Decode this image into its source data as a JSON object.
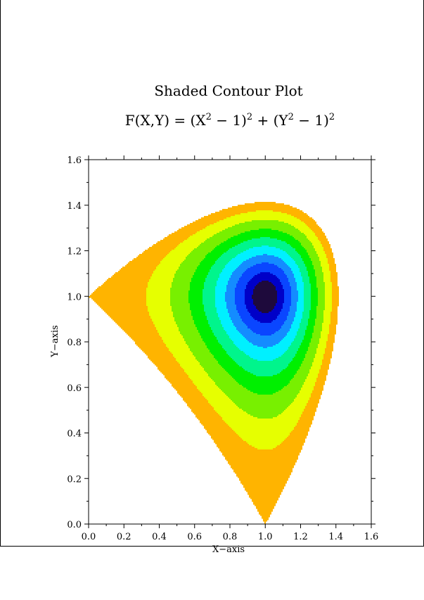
{
  "chart_data": {
    "type": "heatmap",
    "subtype": "filled-contour",
    "title": "Shaded Contour Plot",
    "subtitle": {
      "prefix": "F(X,Y) = (X",
      "exp1": "2",
      "mid1": " − 1)",
      "exp2": "2",
      "mid2": " + (Y",
      "exp3": "2",
      "mid3": " − 1)",
      "exp4": "2"
    },
    "xlabel": "X−axis",
    "ylabel": "Y−axis",
    "xlim": [
      0.0,
      1.6
    ],
    "ylim": [
      0.0,
      1.6
    ],
    "xticks": [
      "0.0",
      "0.2",
      "0.4",
      "0.6",
      "0.8",
      "1.0",
      "1.2",
      "1.4",
      "1.6"
    ],
    "yticks": [
      "0.0",
      "0.2",
      "0.4",
      "0.6",
      "0.8",
      "1.0",
      "1.2",
      "1.4",
      "1.6"
    ],
    "grid": false,
    "levels": [
      0.02,
      0.05,
      0.1,
      0.16,
      0.24,
      0.34,
      0.46,
      0.62,
      0.8,
      1.0
    ],
    "colors": [
      "#1e0a3c",
      "#0000c8",
      "#0a46ff",
      "#148cff",
      "#00f0ff",
      "#00f58c",
      "#00f000",
      "#78f000",
      "#e6ff00",
      "#ffb400"
    ]
  }
}
